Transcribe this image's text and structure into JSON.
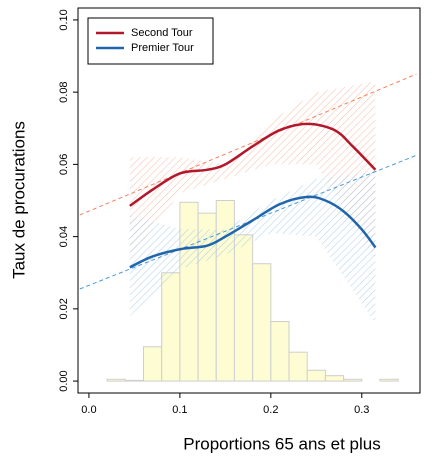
{
  "chart_data": {
    "type": "line",
    "xlabel": "Proportions 65 ans et plus",
    "ylabel": "Taux de procurations",
    "xlim": [
      -0.012,
      0.364
    ],
    "ylim": [
      -0.0033,
      0.1033
    ],
    "xticks": [
      {
        "value": 0,
        "label": "0.0"
      },
      0.1,
      0.2,
      0.3
    ],
    "yticks": [
      {
        "value": 0,
        "label": "0.00"
      },
      {
        "value": 0.02,
        "label": "0.02"
      },
      {
        "value": 0.04,
        "label": "0.04"
      },
      {
        "value": 0.06,
        "label": "0.06"
      },
      {
        "value": 0.08,
        "label": "0.08"
      },
      {
        "value": 0.1,
        "label": "0.10"
      }
    ],
    "legend": "upper left",
    "series": [
      {
        "name": "Second Tour",
        "color": "#b2182b",
        "x": [
          0.045,
          0.07,
          0.1,
          0.13,
          0.15,
          0.18,
          0.21,
          0.24,
          0.27,
          0.29,
          0.315
        ],
        "values": [
          0.0485,
          0.053,
          0.0575,
          0.0585,
          0.06,
          0.065,
          0.0695,
          0.0712,
          0.0695,
          0.065,
          0.0585
        ]
      },
      {
        "name": "Premier Tour",
        "color": "#2166ac",
        "x": [
          0.045,
          0.07,
          0.1,
          0.13,
          0.15,
          0.18,
          0.21,
          0.24,
          0.26,
          0.28,
          0.3,
          0.315
        ],
        "values": [
          0.0315,
          0.0345,
          0.0365,
          0.0375,
          0.04,
          0.0445,
          0.049,
          0.051,
          0.05,
          0.047,
          0.042,
          0.037
        ]
      }
    ],
    "trend_lines": [
      {
        "color": "#f4845f",
        "x": [
          -0.01,
          0.36
        ],
        "values": [
          0.046,
          0.085
        ]
      },
      {
        "color": "#4a9ad6",
        "x": [
          -0.01,
          0.36
        ],
        "values": [
          0.0255,
          0.0625
        ]
      }
    ],
    "bands": [
      {
        "color": "#f6b8a4",
        "x": [
          0.045,
          0.1,
          0.15,
          0.2,
          0.25,
          0.315
        ],
        "lower": [
          0.034,
          0.052,
          0.056,
          0.06,
          0.06,
          0.034
        ],
        "upper": [
          0.062,
          0.062,
          0.06,
          0.072,
          0.08,
          0.083
        ]
      },
      {
        "color": "#a8cce8",
        "x": [
          0.045,
          0.1,
          0.15,
          0.2,
          0.25,
          0.315
        ],
        "lower": [
          0.018,
          0.031,
          0.035,
          0.041,
          0.04,
          0.016
        ],
        "upper": [
          0.046,
          0.042,
          0.042,
          0.05,
          0.056,
          0.058
        ]
      }
    ],
    "histogram": {
      "color": "#fdfcd2",
      "bins": [
        0.02,
        0.04,
        0.06,
        0.08,
        0.1,
        0.12,
        0.14,
        0.16,
        0.18,
        0.2,
        0.22,
        0.24,
        0.26,
        0.28,
        0.3,
        0.32,
        0.34
      ],
      "values": [
        0.0005,
        0.0002,
        0.0095,
        0.03,
        0.0495,
        0.0465,
        0.05,
        0.0405,
        0.0325,
        0.0165,
        0.008,
        0.003,
        0.0015,
        0.0005,
        0,
        0.0005
      ]
    }
  }
}
